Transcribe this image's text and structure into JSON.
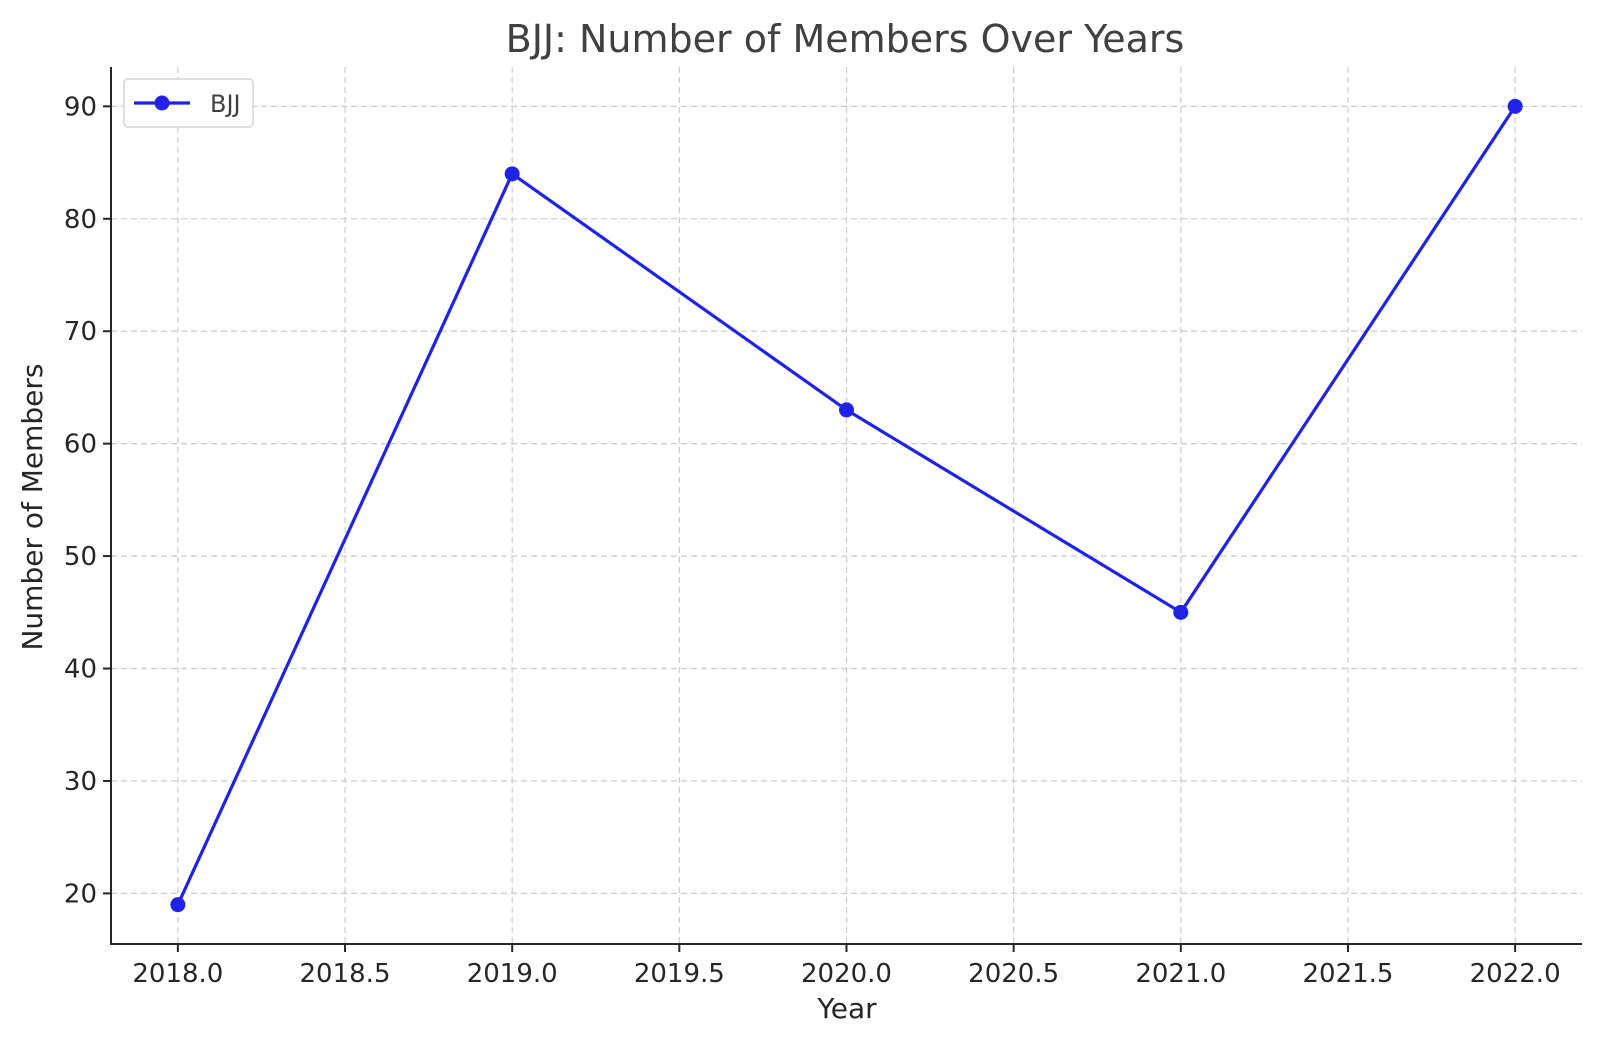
{
  "chart_data": {
    "type": "line",
    "title": "BJJ: Number of Members Over Years",
    "xlabel": "Year",
    "ylabel": "Number of Members",
    "xlim": [
      2017.8,
      2022.2
    ],
    "ylim": [
      15.5,
      93.5
    ],
    "x_ticks": [
      2018.0,
      2018.5,
      2019.0,
      2019.5,
      2020.0,
      2020.5,
      2021.0,
      2021.5,
      2022.0
    ],
    "x_tick_labels": [
      "2018.0",
      "2018.5",
      "2019.0",
      "2019.5",
      "2020.0",
      "2020.5",
      "2021.0",
      "2021.5",
      "2022.0"
    ],
    "y_ticks": [
      20,
      30,
      40,
      50,
      60,
      70,
      80,
      90
    ],
    "y_tick_labels": [
      "20",
      "30",
      "40",
      "50",
      "60",
      "70",
      "80",
      "90"
    ],
    "grid": true,
    "legend": "top-left",
    "series": [
      {
        "name": "BJJ",
        "color": "#1f23e6",
        "marker": "circle",
        "x": [
          2018,
          2019,
          2020,
          2021,
          2022
        ],
        "y": [
          19,
          84,
          63,
          45,
          90
        ]
      }
    ]
  }
}
